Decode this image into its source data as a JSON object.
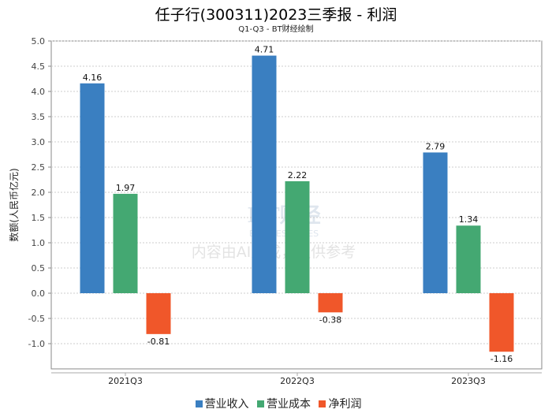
{
  "chart_data": {
    "type": "bar",
    "title": "任子行(300311)2023三季报 - 利润",
    "subtitle": "Q1-Q3 - BT财经绘制",
    "ylabel": "数额(人民币亿元)",
    "xlabel": "",
    "ylim": [
      -1.5,
      5.0
    ],
    "yticks": [
      "5.0",
      "4.5",
      "4.0",
      "3.5",
      "3.0",
      "2.5",
      "2.0",
      "1.5",
      "1.0",
      "0.5",
      "0.0",
      "-0.5",
      "-1.0"
    ],
    "categories": [
      "2021Q3",
      "2022Q3",
      "2023Q3"
    ],
    "series": [
      {
        "name": "营业收入",
        "color": "#3a7fc1",
        "values": [
          4.16,
          4.71,
          2.79
        ],
        "labels": [
          "4.16",
          "4.71",
          "2.79"
        ]
      },
      {
        "name": "营业成本",
        "color": "#44a872",
        "values": [
          1.97,
          2.22,
          1.34
        ],
        "labels": [
          "1.97",
          "2.22",
          "1.34"
        ]
      },
      {
        "name": "净利润",
        "color": "#f0572a",
        "values": [
          -0.81,
          -0.38,
          -1.16
        ],
        "labels": [
          "-0.81",
          "-0.38",
          "-1.16"
        ]
      }
    ],
    "grid": true,
    "legend": "bottom",
    "watermark": [
      "BT财经",
      "BUSINESSTIMES",
      "内容由AI生成，仅供参考"
    ]
  }
}
